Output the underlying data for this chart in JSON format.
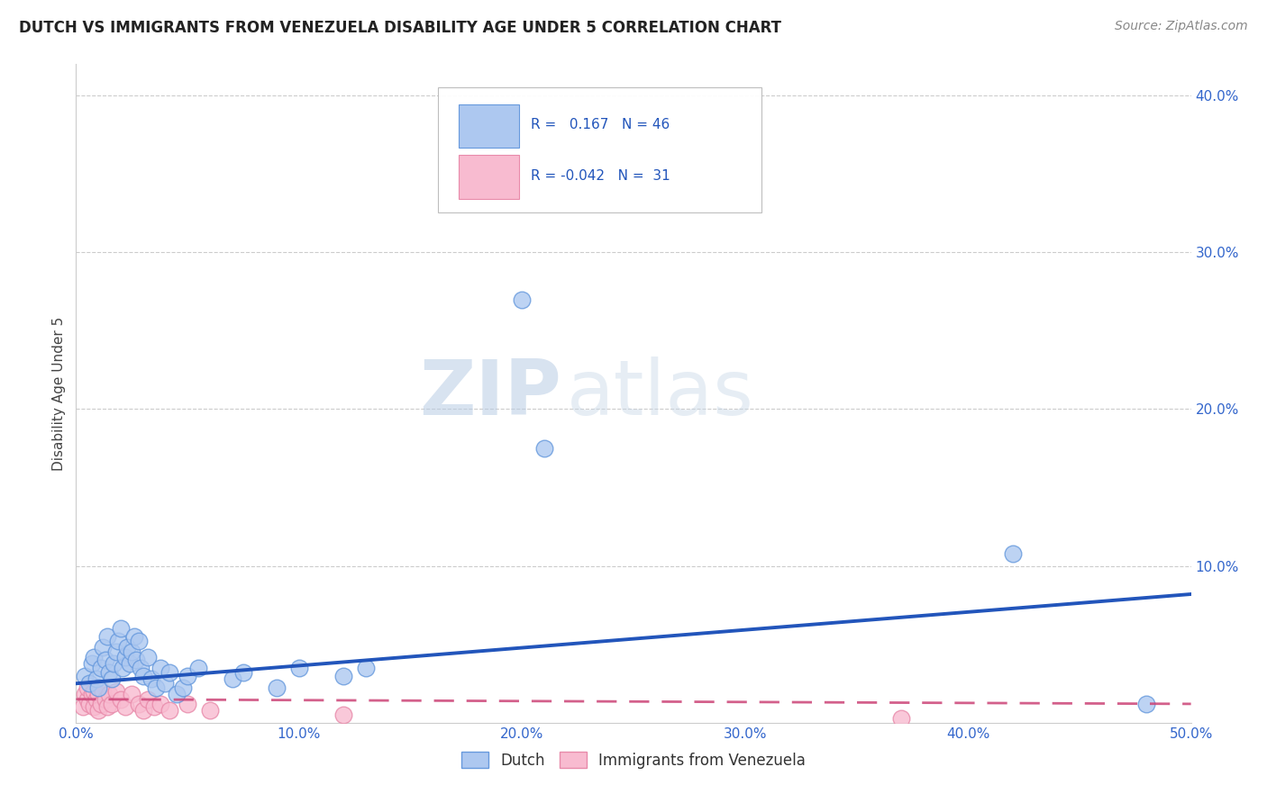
{
  "title": "DUTCH VS IMMIGRANTS FROM VENEZUELA DISABILITY AGE UNDER 5 CORRELATION CHART",
  "source": "Source: ZipAtlas.com",
  "ylabel": "Disability Age Under 5",
  "xlim": [
    0.0,
    0.5
  ],
  "ylim": [
    0.0,
    0.42
  ],
  "xticks": [
    0.0,
    0.1,
    0.2,
    0.3,
    0.4,
    0.5
  ],
  "yticks": [
    0.1,
    0.2,
    0.3,
    0.4
  ],
  "background_color": "#ffffff",
  "dutch": {
    "R": 0.167,
    "N": 46,
    "face_color": "#adc8f0",
    "edge_color": "#6699dd",
    "line_color": "#2255bb",
    "points": [
      [
        0.004,
        0.03
      ],
      [
        0.006,
        0.025
      ],
      [
        0.007,
        0.038
      ],
      [
        0.008,
        0.042
      ],
      [
        0.009,
        0.028
      ],
      [
        0.01,
        0.022
      ],
      [
        0.011,
        0.035
      ],
      [
        0.012,
        0.048
      ],
      [
        0.013,
        0.04
      ],
      [
        0.014,
        0.055
      ],
      [
        0.015,
        0.032
      ],
      [
        0.016,
        0.028
      ],
      [
        0.017,
        0.038
      ],
      [
        0.018,
        0.045
      ],
      [
        0.019,
        0.052
      ],
      [
        0.02,
        0.06
      ],
      [
        0.021,
        0.035
      ],
      [
        0.022,
        0.042
      ],
      [
        0.023,
        0.048
      ],
      [
        0.024,
        0.038
      ],
      [
        0.025,
        0.045
      ],
      [
        0.026,
        0.055
      ],
      [
        0.027,
        0.04
      ],
      [
        0.028,
        0.052
      ],
      [
        0.029,
        0.035
      ],
      [
        0.03,
        0.03
      ],
      [
        0.032,
        0.042
      ],
      [
        0.034,
        0.028
      ],
      [
        0.036,
        0.022
      ],
      [
        0.038,
        0.035
      ],
      [
        0.04,
        0.025
      ],
      [
        0.042,
        0.032
      ],
      [
        0.045,
        0.018
      ],
      [
        0.048,
        0.022
      ],
      [
        0.05,
        0.03
      ],
      [
        0.055,
        0.035
      ],
      [
        0.07,
        0.028
      ],
      [
        0.075,
        0.032
      ],
      [
        0.09,
        0.022
      ],
      [
        0.1,
        0.035
      ],
      [
        0.12,
        0.03
      ],
      [
        0.13,
        0.035
      ],
      [
        0.2,
        0.27
      ],
      [
        0.21,
        0.175
      ],
      [
        0.42,
        0.108
      ],
      [
        0.48,
        0.012
      ]
    ],
    "trend_x": [
      0.0,
      0.5
    ],
    "trend_y": [
      0.025,
      0.082
    ]
  },
  "venezuela": {
    "R": -0.042,
    "N": 31,
    "face_color": "#f8bbd0",
    "edge_color": "#e88aaa",
    "line_color": "#cc4477",
    "points": [
      [
        0.003,
        0.01
      ],
      [
        0.004,
        0.018
      ],
      [
        0.005,
        0.015
      ],
      [
        0.005,
        0.022
      ],
      [
        0.006,
        0.012
      ],
      [
        0.007,
        0.018
      ],
      [
        0.008,
        0.01
      ],
      [
        0.008,
        0.02
      ],
      [
        0.009,
        0.015
      ],
      [
        0.01,
        0.008
      ],
      [
        0.01,
        0.018
      ],
      [
        0.011,
        0.012
      ],
      [
        0.012,
        0.02
      ],
      [
        0.013,
        0.015
      ],
      [
        0.014,
        0.01
      ],
      [
        0.015,
        0.018
      ],
      [
        0.016,
        0.012
      ],
      [
        0.018,
        0.02
      ],
      [
        0.02,
        0.015
      ],
      [
        0.022,
        0.01
      ],
      [
        0.025,
        0.018
      ],
      [
        0.028,
        0.012
      ],
      [
        0.03,
        0.008
      ],
      [
        0.032,
        0.015
      ],
      [
        0.035,
        0.01
      ],
      [
        0.038,
        0.012
      ],
      [
        0.042,
        0.008
      ],
      [
        0.05,
        0.012
      ],
      [
        0.06,
        0.008
      ],
      [
        0.12,
        0.005
      ],
      [
        0.37,
        0.003
      ]
    ],
    "trend_x": [
      0.0,
      0.5
    ],
    "trend_y": [
      0.015,
      0.012
    ]
  },
  "legend_R_label_dutch": "R =  0.167   N = 46",
  "legend_R_label_ven": "R = -0.042   N =  31",
  "watermark_zip": "ZIP",
  "watermark_atlas": "atlas"
}
